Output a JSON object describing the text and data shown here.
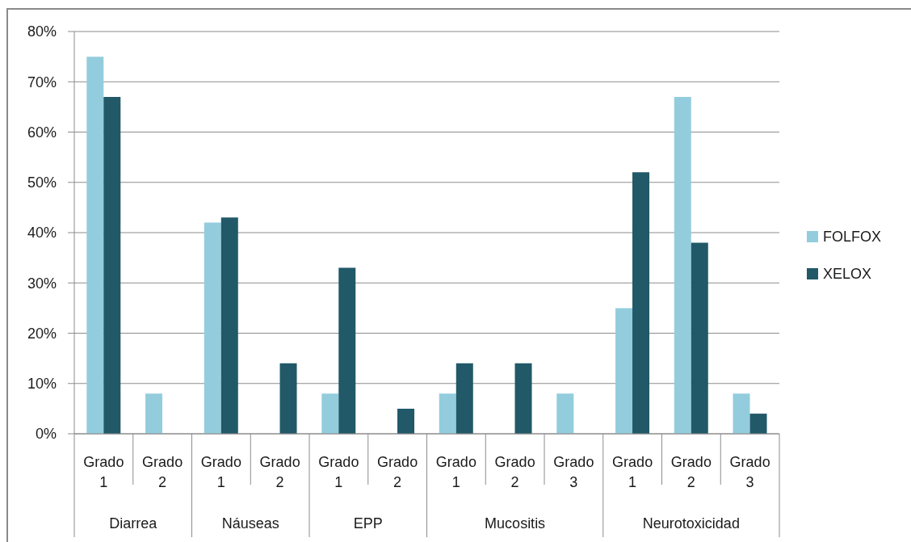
{
  "chart_data": {
    "type": "bar",
    "categories": [
      "Grado 1",
      "Grado 2",
      "Grado 1",
      "Grado 2",
      "Grado 1",
      "Grado 2",
      "Grado 1",
      "Grado 2",
      "Grado 3",
      "Grado 1",
      "Grado 2",
      "Grado 3"
    ],
    "series": [
      {
        "name": "FOLFOX",
        "color": "#93cddd",
        "values": [
          75,
          8,
          42,
          null,
          8,
          null,
          8,
          null,
          8,
          25,
          67,
          8
        ]
      },
      {
        "name": "XELOX",
        "color": "#215968",
        "values": [
          67,
          null,
          43,
          14,
          33,
          5,
          14,
          14,
          null,
          52,
          38,
          4
        ]
      }
    ],
    "ylim": [
      0,
      80
    ],
    "yticks": [
      {
        "value": 0,
        "label": "0%"
      },
      {
        "value": 10,
        "label": "10%"
      },
      {
        "value": 20,
        "label": "20%"
      },
      {
        "value": 30,
        "label": "30%"
      },
      {
        "value": 40,
        "label": "40%"
      },
      {
        "value": 50,
        "label": "50%"
      },
      {
        "value": 60,
        "label": "60%"
      },
      {
        "value": 70,
        "label": "70%"
      },
      {
        "value": 80,
        "label": "80%"
      }
    ],
    "grid": "y",
    "legend": "right",
    "annotations": [
      "Diarrea",
      "Náuseas",
      "EPP",
      "Mucositis",
      "Neurotoxicidad"
    ]
  }
}
